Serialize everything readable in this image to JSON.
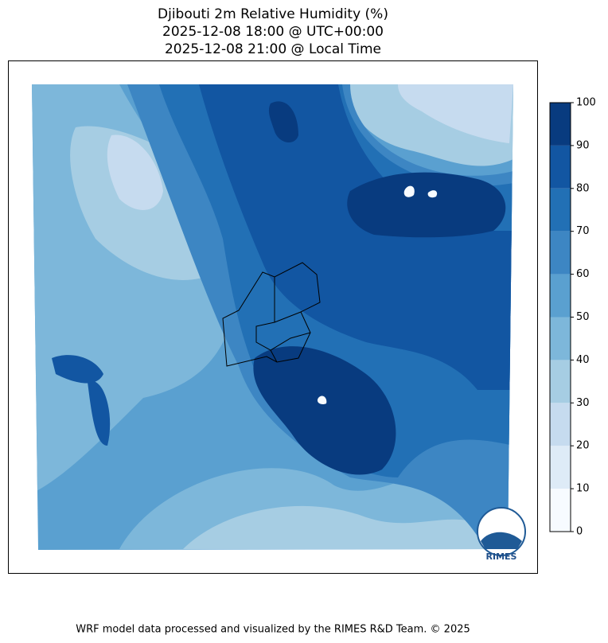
{
  "title": [
    "Djibouti 2m Relative Humidity (%)",
    "2025-12-08 18:00 @ UTC+00:00",
    "2025-12-08 21:00 @ Local Time"
  ],
  "colorbar": {
    "levels": [
      0,
      10,
      20,
      30,
      40,
      50,
      60,
      70,
      80,
      90,
      100
    ],
    "colors": [
      "#f7fbff",
      "#deebf7",
      "#c6dbef",
      "#a6cde3",
      "#7db7da",
      "#5aa0d0",
      "#3d86c3",
      "#2270b5",
      "#1256a2",
      "#083b7f"
    ]
  },
  "logo": "RIMES",
  "footer": "WRF model data processed and visualized by the RIMES R&D Team. © 2025"
}
